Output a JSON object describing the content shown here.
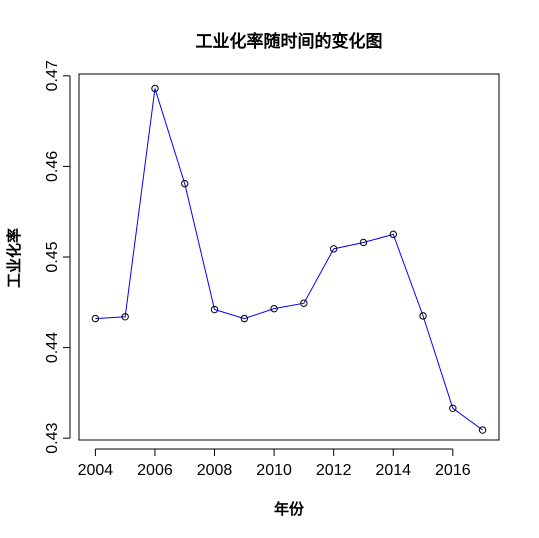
{
  "chart_data": {
    "type": "line",
    "title": "工业化率随时间的变化图",
    "xlabel": "年份",
    "ylabel": "工业化率",
    "x": [
      2004,
      2005,
      2006,
      2007,
      2008,
      2009,
      2010,
      2011,
      2012,
      2013,
      2014,
      2015,
      2016,
      2017
    ],
    "series": [
      {
        "values": [
          0.4432,
          0.4434,
          0.4686,
          0.4581,
          0.4442,
          0.4432,
          0.4443,
          0.4449,
          0.4509,
          0.4516,
          0.4525,
          0.4435,
          0.4333,
          0.4309
        ],
        "color": "#0000ff",
        "marker": "open-circle"
      }
    ],
    "xlim": [
      2003.45,
      2017.55
    ],
    "ylim": [
      0.4298,
      0.4702
    ],
    "xticks": [
      2004,
      2006,
      2008,
      2010,
      2012,
      2014,
      2016
    ],
    "xtick_labels": [
      "2004",
      "2006",
      "2008",
      "2010",
      "2012",
      "2014",
      "2016"
    ],
    "yticks": [
      0.43,
      0.44,
      0.45,
      0.46,
      0.47
    ],
    "ytick_labels": [
      "0.43",
      "0.44",
      "0.45",
      "0.46",
      "0.47"
    ],
    "grid": false,
    "legend": "none"
  }
}
